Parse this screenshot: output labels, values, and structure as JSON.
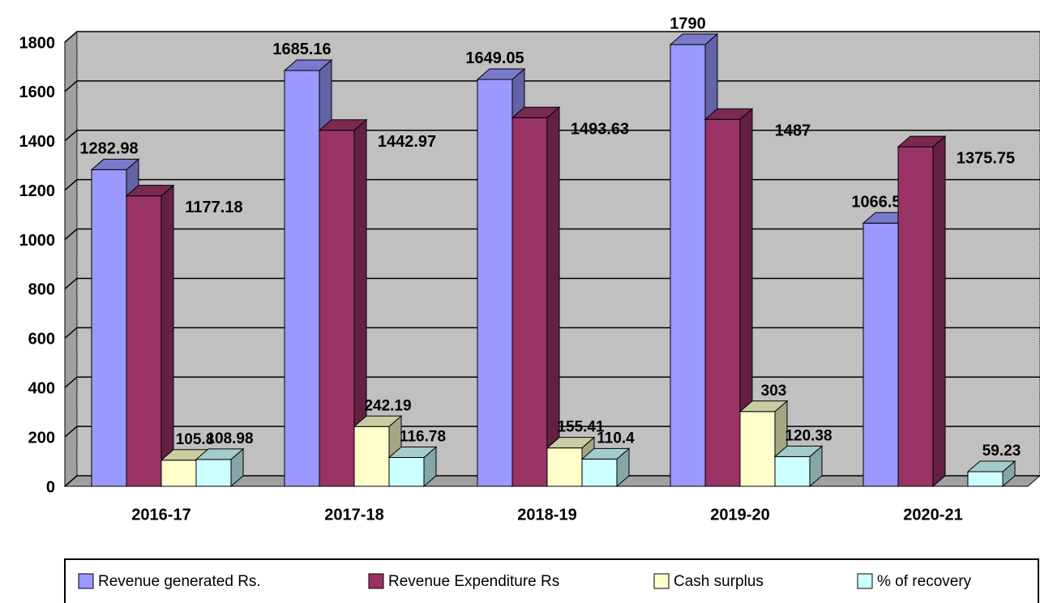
{
  "chart_data": {
    "type": "bar3d",
    "categories": [
      "2016-17",
      "2017-18",
      "2018-19",
      "2019-20",
      "2020-21"
    ],
    "series": [
      {
        "name": "Revenue generated Rs.",
        "color": "#9999ff",
        "values": [
          1282.98,
          1685.16,
          1649.05,
          1790,
          1066.52
        ]
      },
      {
        "name": "Revenue Expenditure Rs",
        "color": "#993366",
        "values": [
          1177.18,
          1442.97,
          1493.63,
          1487,
          1375.75
        ]
      },
      {
        "name": "Cash surplus",
        "color": "#ffffcc",
        "values": [
          105.8,
          242.19,
          155.41,
          303,
          null
        ]
      },
      {
        "name": "% of recovery",
        "color": "#ccffff",
        "values": [
          108.98,
          116.78,
          110.4,
          120.38,
          59.23
        ]
      }
    ],
    "ylim": [
      0,
      1800
    ],
    "yticks": [
      0,
      200,
      400,
      600,
      800,
      1000,
      1200,
      1400,
      1600,
      1800
    ],
    "grid": true,
    "legend": "bottom"
  }
}
